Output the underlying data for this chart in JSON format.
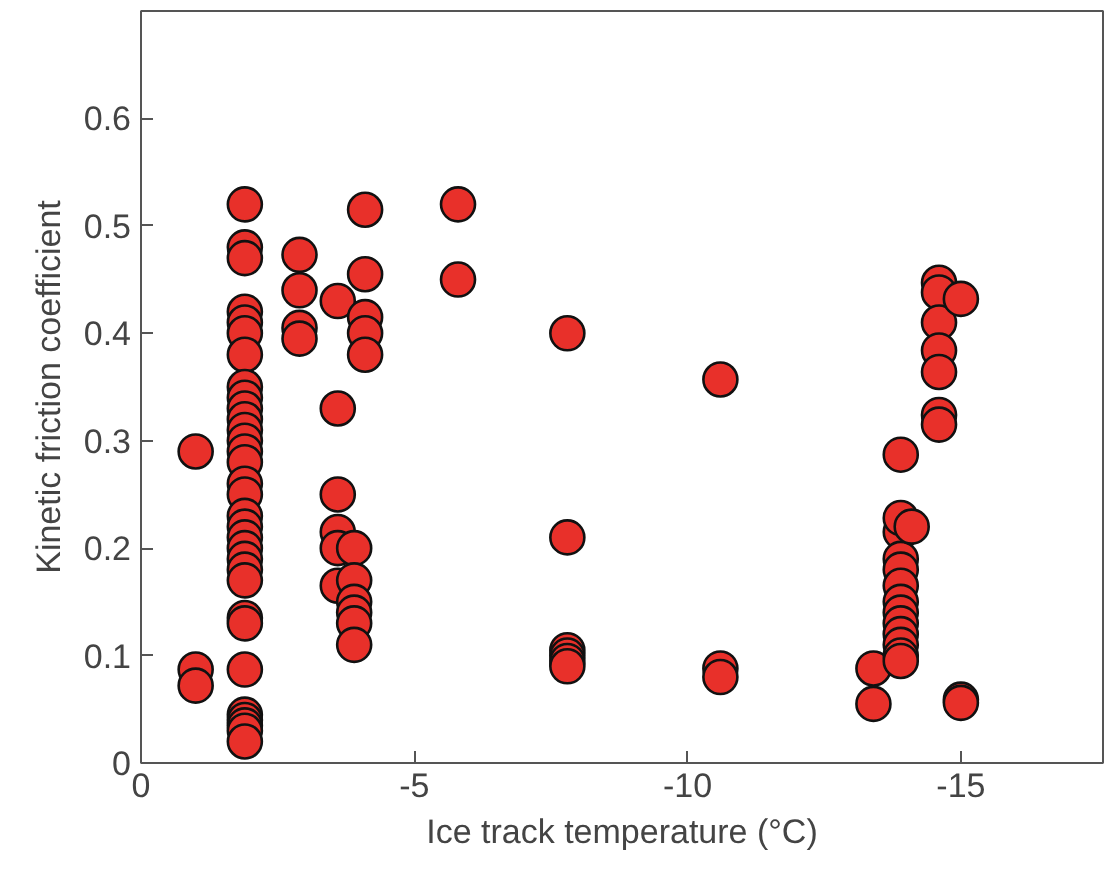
{
  "chart_data": {
    "type": "scatter",
    "xlabel": "Ice track temperature (°C)",
    "ylabel": "Kinetic friction coefficient",
    "xlim": [
      0,
      -17.6
    ],
    "ylim": [
      0,
      0.7
    ],
    "xticks": [
      0,
      -5,
      -10,
      -15
    ],
    "yticks": [
      0,
      0.1,
      0.2,
      0.3,
      0.4,
      0.5,
      0.6
    ],
    "grid": false,
    "marker": "circle",
    "series": [
      {
        "color": "#e8302a",
        "x": [
          -1,
          -1,
          -1,
          -1.9,
          -1.9,
          -1.9,
          -1.9,
          -1.9,
          -1.9,
          -1.9,
          -1.9,
          -1.9,
          -1.9,
          -1.9,
          -1.9,
          -1.9,
          -1.9,
          -1.9,
          -1.9,
          -1.9,
          -1.9,
          -1.9,
          -1.9,
          -1.9,
          -1.9,
          -1.9,
          -1.9,
          -1.9,
          -1.9,
          -1.9,
          -1.9,
          -1.9,
          -1.9,
          -1.9,
          -1.9,
          -2.9,
          -2.9,
          -2.9,
          -2.9,
          -3.6,
          -3.6,
          -3.6,
          -3.6,
          -3.6,
          -3.6,
          -3.9,
          -3.9,
          -3.9,
          -3.9,
          -3.9,
          -3.9,
          -4.1,
          -4.1,
          -4.1,
          -4.1,
          -4.1,
          -5.8,
          -5.8,
          -7.8,
          -7.8,
          -7.8,
          -7.8,
          -7.8,
          -7.8,
          -10.6,
          -10.6,
          -10.6,
          -13.4,
          -13.4,
          -13.9,
          -13.9,
          -13.9,
          -13.9,
          -13.9,
          -13.9,
          -13.9,
          -13.9,
          -13.9,
          -13.9,
          -13.9,
          -13.9,
          -13.9,
          -14.1,
          -14.6,
          -14.6,
          -14.6,
          -14.6,
          -14.6,
          -14.6,
          -14.6,
          -15.0,
          -15.0,
          -15.0
        ],
        "values": [
          0.29,
          0.087,
          0.072,
          0.52,
          0.48,
          0.47,
          0.42,
          0.41,
          0.4,
          0.38,
          0.35,
          0.34,
          0.33,
          0.32,
          0.31,
          0.3,
          0.29,
          0.28,
          0.26,
          0.25,
          0.23,
          0.22,
          0.21,
          0.2,
          0.19,
          0.18,
          0.17,
          0.135,
          0.13,
          0.087,
          0.045,
          0.04,
          0.035,
          0.03,
          0.02,
          0.473,
          0.44,
          0.405,
          0.395,
          0.43,
          0.33,
          0.25,
          0.215,
          0.2,
          0.165,
          0.2,
          0.17,
          0.15,
          0.14,
          0.13,
          0.11,
          0.515,
          0.455,
          0.415,
          0.4,
          0.38,
          0.52,
          0.45,
          0.4,
          0.21,
          0.105,
          0.1,
          0.095,
          0.09,
          0.357,
          0.088,
          0.08,
          0.088,
          0.055,
          0.287,
          0.215,
          0.19,
          0.18,
          0.165,
          0.15,
          0.14,
          0.13,
          0.12,
          0.11,
          0.1,
          0.095,
          0.228,
          0.22,
          0.447,
          0.438,
          0.41,
          0.384,
          0.364,
          0.324,
          0.315,
          0.432,
          0.059,
          0.056
        ]
      }
    ]
  }
}
